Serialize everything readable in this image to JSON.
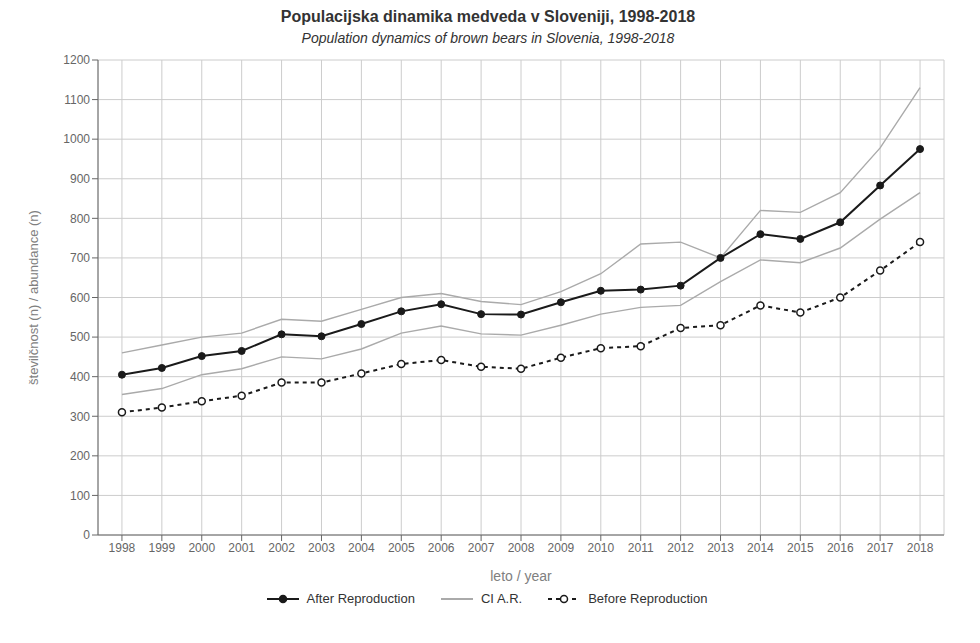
{
  "chart_data": {
    "type": "line",
    "title": "Populacijska dinamika medveda v Sloveniji, 1998-2018",
    "subtitle": "Population dynamics of brown bears in Slovenia, 1998-2018",
    "x_label": "leto / year",
    "y_label": "številčnost (n) / abundance (n)",
    "x": [
      1998,
      1999,
      2000,
      2001,
      2002,
      2003,
      2004,
      2005,
      2006,
      2007,
      2008,
      2009,
      2010,
      2011,
      2012,
      2013,
      2014,
      2015,
      2016,
      2017,
      2018
    ],
    "series": [
      {
        "name": "After Reproduction",
        "color": "#1a1a1a",
        "marker": "circle",
        "line_style": "solid",
        "values": [
          405,
          422,
          452,
          465,
          507,
          502,
          533,
          565,
          583,
          558,
          557,
          588,
          617,
          620,
          630,
          700,
          760,
          748,
          790,
          883,
          975
        ]
      },
      {
        "name": "CI A.R.",
        "color": "#aaaaaa",
        "marker": "none",
        "line_style": "solid",
        "values": [
          460,
          480,
          500,
          510,
          545,
          540,
          570,
          600,
          610,
          590,
          582,
          615,
          660,
          735,
          740,
          700,
          820,
          815,
          865,
          978,
          1130
        ]
      },
      {
        "name": "CI A.R.",
        "color": "#aaaaaa",
        "marker": "none",
        "line_style": "solid",
        "values": [
          355,
          370,
          405,
          420,
          450,
          445,
          470,
          510,
          528,
          508,
          505,
          530,
          558,
          575,
          580,
          640,
          695,
          688,
          725,
          798,
          865
        ]
      },
      {
        "name": "Before Reproduction",
        "color": "#1a1a1a",
        "marker": "open_circle",
        "line_style": "dotted",
        "values": [
          310,
          322,
          338,
          352,
          385,
          385,
          408,
          432,
          442,
          425,
          420,
          448,
          472,
          477,
          523,
          530,
          580,
          562,
          600,
          668,
          740
        ]
      }
    ],
    "xlim": [
      1997.4,
      2018.6
    ],
    "xticks": [
      1998,
      1999,
      2000,
      2001,
      2002,
      2003,
      2004,
      2005,
      2006,
      2007,
      2008,
      2009,
      2010,
      2011,
      2012,
      2013,
      2014,
      2015,
      2016,
      2017,
      2018
    ],
    "ylim": [
      0,
      1200
    ],
    "yticks": [
      0,
      100,
      200,
      300,
      400,
      500,
      600,
      700,
      800,
      900,
      1000,
      1100,
      1200
    ],
    "grid": true,
    "legend": "bottom"
  }
}
